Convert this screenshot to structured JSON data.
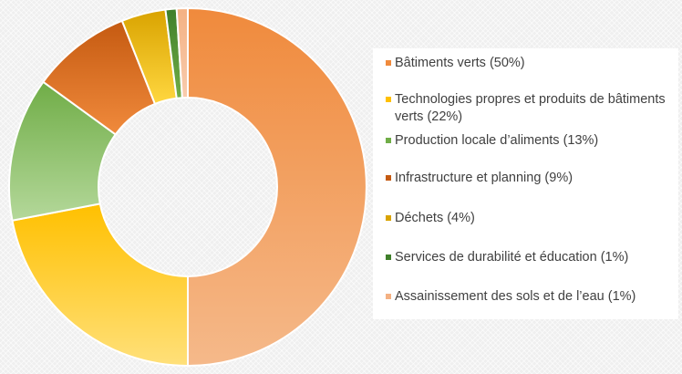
{
  "chart_data": {
    "type": "pie",
    "title": "",
    "legend_position": "right",
    "slices": [
      {
        "label": "Bâtiments verts (50%)",
        "value": 50,
        "color": "#f08a3c",
        "color_light": "#f5b98a"
      },
      {
        "label": "Technologies propres et produits de bâtiments verts (22%)",
        "value": 22,
        "color": "#ffc000",
        "color_light": "#ffe07a"
      },
      {
        "label": "Production locale d’aliments (13%)",
        "value": 13,
        "color": "#70ad47",
        "color_light": "#b4d89a"
      },
      {
        "label": "Infrastructure et planning (9%)",
        "value": 9,
        "color": "#c55a11",
        "color_light": "#f08a3c"
      },
      {
        "label": "Déchets (4%)",
        "value": 4,
        "color": "#d9a300",
        "color_light": "#ffd740"
      },
      {
        "label": "Services de durabilité et éducation (1%)",
        "value": 1,
        "color": "#3f7f2a",
        "color_light": "#70ad47"
      },
      {
        "label": "Assainissement des sols et de l’eau (1%)",
        "value": 1,
        "color": "#f4b183",
        "color_light": "#f8cbad"
      }
    ]
  }
}
